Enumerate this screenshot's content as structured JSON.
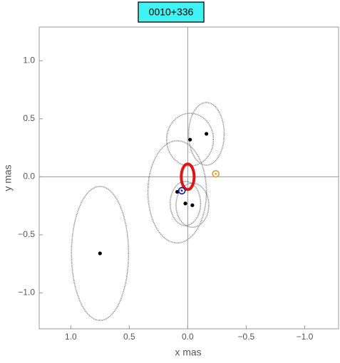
{
  "chart_data": {
    "type": "scatter",
    "title": "0010+336",
    "xlabel": "x  mas",
    "ylabel": "y  mas",
    "xlim": [
      1.27,
      -1.29
    ],
    "ylim": [
      -1.31,
      1.29
    ],
    "xticks": [
      {
        "value": 1,
        "label": "1.0"
      },
      0.5,
      {
        "value": 0,
        "label": "0.0"
      },
      {
        "value": -0.5,
        "label": "−0.5"
      },
      {
        "value": -1,
        "label": "−1.0"
      }
    ],
    "yticks": [
      {
        "value": -1,
        "label": "−1.0"
      },
      {
        "value": -0.5,
        "label": "−0.5"
      },
      {
        "value": 0,
        "label": "0.0"
      },
      0.5,
      {
        "value": 1,
        "label": "1.0"
      }
    ],
    "points": {
      "color": "#000000",
      "ellipse_color": "#808080",
      "x": [
        0.75,
        -0.02,
        -0.16,
        0.09,
        0.02,
        -0.04
      ],
      "y": [
        -0.66,
        0.32,
        0.37,
        -0.13,
        -0.23,
        -0.245
      ],
      "xerr": [
        0.244,
        0.2,
        0.152,
        0.25,
        0.13,
        0.14
      ],
      "yerr": [
        0.577,
        0.227,
        0.27,
        0.44,
        0.19,
        0.19
      ]
    },
    "reference": {
      "x": 0,
      "y": 0.0,
      "xerr": 0.055,
      "yerr": 0.11,
      "color": "#e01414"
    },
    "markers": [
      {
        "x": 0.05,
        "y": -0.12,
        "color": "#1a1aa0"
      },
      {
        "x": -0.24,
        "y": 0.025,
        "color": "#e09a3a"
      }
    ]
  }
}
